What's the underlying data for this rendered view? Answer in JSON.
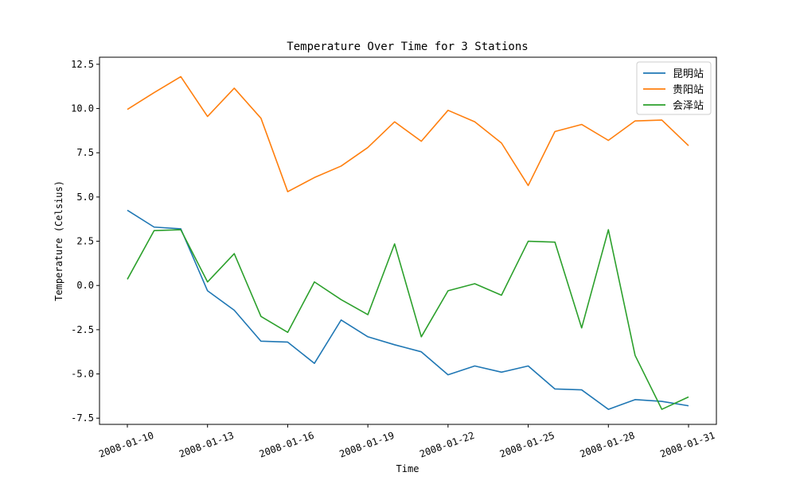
{
  "chart_data": {
    "type": "line",
    "title": "Temperature Over Time for 3 Stations",
    "xlabel": "Time",
    "ylabel": "Temperature (Celsius)",
    "x": [
      "2008-01-10",
      "2008-01-11",
      "2008-01-12",
      "2008-01-13",
      "2008-01-14",
      "2008-01-15",
      "2008-01-16",
      "2008-01-17",
      "2008-01-18",
      "2008-01-19",
      "2008-01-20",
      "2008-01-21",
      "2008-01-22",
      "2008-01-23",
      "2008-01-24",
      "2008-01-25",
      "2008-01-26",
      "2008-01-27",
      "2008-01-28",
      "2008-01-29",
      "2008-01-30",
      "2008-01-31"
    ],
    "xticks": [
      "2008-01-10",
      "2008-01-13",
      "2008-01-16",
      "2008-01-19",
      "2008-01-22",
      "2008-01-25",
      "2008-01-28",
      "2008-01-31"
    ],
    "yticks": [
      -7.5,
      -5.0,
      -2.5,
      0.0,
      2.5,
      5.0,
      7.5,
      10.0,
      12.5
    ],
    "ylim": [
      -7.85,
      12.9
    ],
    "grid": false,
    "legend_position": "top-right",
    "series": [
      {
        "name": "昆明站",
        "color": "#1f77b4",
        "values": [
          4.25,
          3.3,
          3.2,
          -0.3,
          -1.4,
          -3.15,
          -3.2,
          -4.4,
          -1.95,
          -2.9,
          -3.35,
          -3.75,
          -5.05,
          -4.55,
          -4.9,
          -4.55,
          -5.85,
          -5.9,
          -7.0,
          -6.45,
          -6.55,
          -6.8
        ]
      },
      {
        "name": "贵阳站",
        "color": "#ff7f0e",
        "values": [
          9.95,
          10.9,
          11.8,
          9.55,
          11.15,
          9.45,
          5.3,
          6.1,
          6.75,
          7.8,
          9.25,
          8.15,
          9.9,
          9.25,
          8.05,
          5.65,
          8.7,
          9.1,
          8.2,
          9.3,
          9.35,
          7.9
        ]
      },
      {
        "name": "会泽站",
        "color": "#2ca02c",
        "values": [
          0.35,
          3.1,
          3.15,
          0.2,
          1.8,
          -1.75,
          -2.65,
          0.2,
          -0.8,
          -1.65,
          2.35,
          -2.9,
          -0.3,
          0.1,
          -0.55,
          2.5,
          2.45,
          -2.4,
          3.15,
          -3.95,
          -7.0,
          -6.3
        ]
      }
    ]
  }
}
